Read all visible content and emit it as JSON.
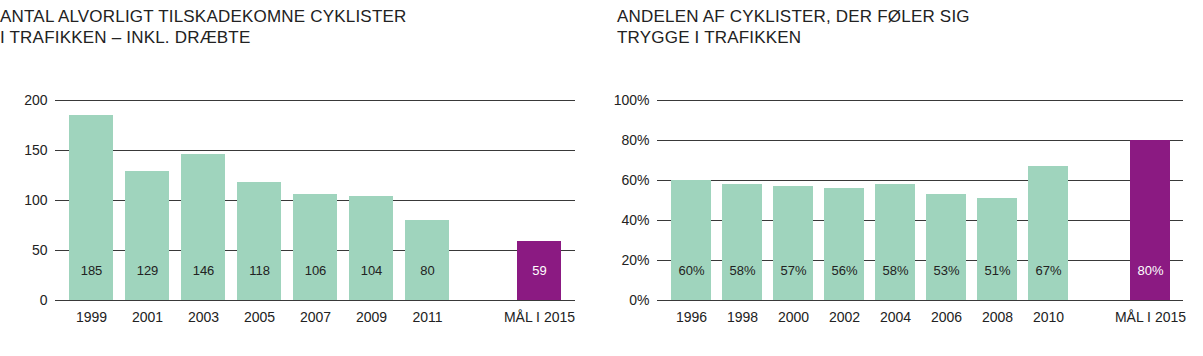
{
  "chart_data": [
    {
      "type": "bar",
      "title": "ANTAL ALVORLIGT TILSKADEKOMNE CYKLISTER\nI TRAFIKKEN – INKL. DRÆBTE",
      "categories": [
        "1999",
        "2001",
        "2003",
        "2005",
        "2007",
        "2009",
        "2011",
        null,
        "MÅL I 2015"
      ],
      "values": [
        185,
        129,
        146,
        118,
        106,
        104,
        80,
        null,
        59
      ],
      "colors": [
        "#9fd4bd",
        "#9fd4bd",
        "#9fd4bd",
        "#9fd4bd",
        "#9fd4bd",
        "#9fd4bd",
        "#9fd4bd",
        null,
        "#8b1a82"
      ],
      "ylim": [
        0,
        200
      ],
      "yticks": [
        0,
        50,
        100,
        150,
        200
      ],
      "grid": true,
      "data_labels": true
    },
    {
      "type": "bar",
      "title": "ANDELEN AF CYKLISTER, DER FØLER SIG\nTRYGGE I TRAFIKKEN",
      "categories": [
        "1996",
        "1998",
        "2000",
        "2002",
        "2004",
        "2006",
        "2008",
        "2010",
        null,
        "MÅL I 2015"
      ],
      "values": [
        60,
        58,
        57,
        56,
        58,
        53,
        51,
        67,
        null,
        80
      ],
      "value_labels": [
        "60%",
        "58%",
        "57%",
        "56%",
        "58%",
        "53%",
        "51%",
        "67%",
        null,
        "80%"
      ],
      "colors": [
        "#9fd4bd",
        "#9fd4bd",
        "#9fd4bd",
        "#9fd4bd",
        "#9fd4bd",
        "#9fd4bd",
        "#9fd4bd",
        "#9fd4bd",
        null,
        "#8b1a82"
      ],
      "ylim": [
        0,
        100
      ],
      "yticks": [
        {
          "value": 0,
          "label": "0%"
        },
        {
          "value": 20,
          "label": "20%"
        },
        {
          "value": 40,
          "label": "40%"
        },
        {
          "value": 60,
          "label": "60%"
        },
        {
          "value": 80,
          "label": "80%"
        },
        {
          "value": 100,
          "label": "100%"
        }
      ],
      "grid": true,
      "data_labels": true
    }
  ]
}
